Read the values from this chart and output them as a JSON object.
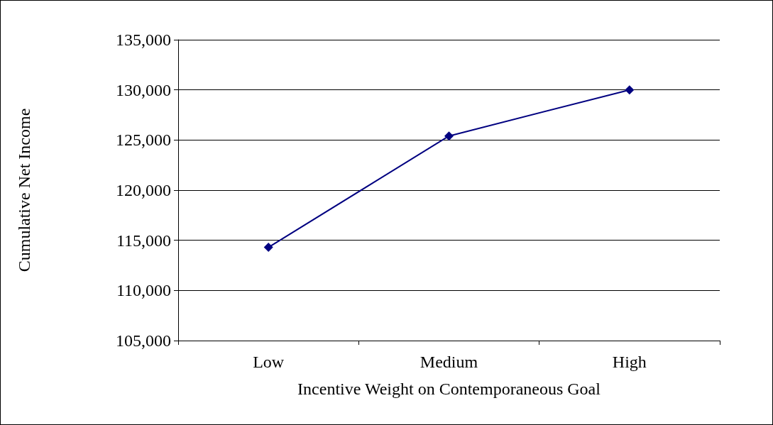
{
  "chart_data": {
    "type": "line",
    "xlabel": "Incentive Weight on Contemporaneous Goal",
    "ylabel": "Cumulative Net Income",
    "categories": [
      "Low",
      "Medium",
      "High"
    ],
    "series": [
      {
        "color": "#000080",
        "values": [
          114300,
          125400,
          130000
        ]
      }
    ],
    "ylim": [
      105000,
      135000
    ],
    "yticks": [
      {
        "value": 105000,
        "label": "105,000"
      },
      {
        "value": 110000,
        "label": "110,000"
      },
      {
        "value": 115000,
        "label": "115,000"
      },
      {
        "value": 120000,
        "label": "120,000"
      },
      {
        "value": 125000,
        "label": "125,000"
      },
      {
        "value": 130000,
        "label": "130,000"
      },
      {
        "value": 135000,
        "label": "135,000"
      }
    ],
    "grid": "y",
    "marker": "diamond",
    "line_style": "solid"
  }
}
